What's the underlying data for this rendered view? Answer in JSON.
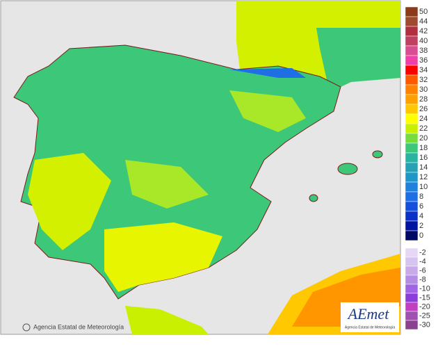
{
  "legend": {
    "positive": [
      {
        "label": "50",
        "color": "#8b3a1a"
      },
      {
        "label": "44",
        "color": "#a04a30"
      },
      {
        "label": "42",
        "color": "#b03040"
      },
      {
        "label": "40",
        "color": "#c04060"
      },
      {
        "label": "38",
        "color": "#d84c90"
      },
      {
        "label": "36",
        "color": "#f040a8"
      },
      {
        "label": "34",
        "color": "#ff0000"
      },
      {
        "label": "32",
        "color": "#ff5a00"
      },
      {
        "label": "30",
        "color": "#ff8200"
      },
      {
        "label": "28",
        "color": "#ffa000"
      },
      {
        "label": "26",
        "color": "#ffc800"
      },
      {
        "label": "24",
        "color": "#ffff00"
      },
      {
        "label": "22",
        "color": "#c8f000"
      },
      {
        "label": "20",
        "color": "#78dc3c"
      },
      {
        "label": "18",
        "color": "#3cc878"
      },
      {
        "label": "16",
        "color": "#28b4a0"
      },
      {
        "label": "14",
        "color": "#28a0b4"
      },
      {
        "label": "12",
        "color": "#1e96c8"
      },
      {
        "label": "10",
        "color": "#1e82dc"
      },
      {
        "label": "8",
        "color": "#1e6ee6"
      },
      {
        "label": "6",
        "color": "#1450dc"
      },
      {
        "label": "4",
        "color": "#0a32c8"
      },
      {
        "label": "2",
        "color": "#0014a0"
      },
      {
        "label": "0",
        "color": "#000a64"
      }
    ],
    "negative": [
      {
        "label": "-2",
        "color": "#e6d7f5"
      },
      {
        "label": "-4",
        "color": "#d7c3f0"
      },
      {
        "label": "-6",
        "color": "#c8aaeb"
      },
      {
        "label": "-8",
        "color": "#b48ce6"
      },
      {
        "label": "-10",
        "color": "#a064e6"
      },
      {
        "label": "-15",
        "color": "#8c3cdc"
      },
      {
        "label": "-20",
        "color": "#c040c0"
      },
      {
        "label": "-25",
        "color": "#a050b0"
      },
      {
        "label": "-30",
        "color": "#8c4090"
      }
    ]
  },
  "credit": "Agencia Estatal de Meteorología",
  "logo": {
    "title": "AEmet",
    "subtitle": "Agencia Estatal de Meteorología"
  }
}
